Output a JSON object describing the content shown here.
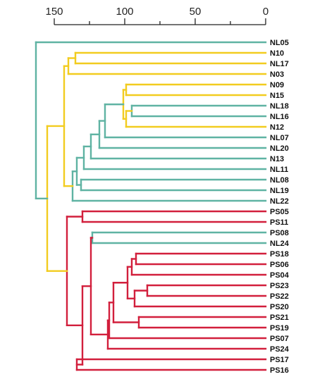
{
  "colors": {
    "teal": "#5fb3a3",
    "yellow": "#f2cc1f",
    "red": "#d21f3c",
    "axis": "#222222"
  },
  "axis": {
    "ticks": [
      {
        "value": 150,
        "label": "150"
      },
      {
        "value": 100,
        "label": "100"
      },
      {
        "value": 50,
        "label": "50"
      },
      {
        "value": 0,
        "label": "0"
      }
    ],
    "minor_ticks": [
      125,
      75,
      25
    ],
    "range": [
      150,
      0
    ]
  },
  "leaves": [
    "NL05",
    "N10",
    "NL17",
    "N03",
    "N09",
    "N15",
    "NL18",
    "NL16",
    "N12",
    "NL07",
    "NL20",
    "N13",
    "NL11",
    "NL08",
    "NL19",
    "NL22",
    "PS05",
    "PS11",
    "PS08",
    "NL24",
    "PS18",
    "PS06",
    "PS04",
    "PS23",
    "PS22",
    "PS20",
    "PS21",
    "PS19",
    "PS07",
    "PS24",
    "PS17",
    "PS16"
  ],
  "tree": {
    "h": 163,
    "c": "teal",
    "children": [
      "NL05",
      {
        "h": 155,
        "c": "yellow",
        "children": [
          {
            "h": 143,
            "c": "yellow",
            "children": [
              {
                "h": 140,
                "c": "yellow",
                "children": [
                  {
                    "h": 135,
                    "c": "yellow",
                    "children": [
                      "N10",
                      "NL17"
                    ]
                  },
                  "N03"
                ]
              },
              {
                "h": 137,
                "c": "teal",
                "children": [
                  {
                    "h": 134,
                    "c": "teal",
                    "children": [
                      {
                        "h": 129,
                        "c": "teal",
                        "children": [
                          {
                            "h": 124,
                            "c": "teal",
                            "children": [
                              {
                                "h": 118,
                                "c": "teal",
                                "children": [
                                  {
                                    "h": 114,
                                    "c": "teal",
                                    "children": [
                                      {
                                        "h": 101,
                                        "c": "yellow",
                                        "children": [
                                          {
                                            "h": 99,
                                            "c": "yellow",
                                            "children": [
                                              "N09",
                                              "N15"
                                            ]
                                          },
                                          {
                                            "h": 99,
                                            "c": "yellow",
                                            "children": [
                                              {
                                                "h": 95,
                                                "c": "teal",
                                                "children": [
                                                  "NL18",
                                                  "NL16"
                                                ]
                                              },
                                              "N12"
                                            ]
                                          }
                                        ]
                                      },
                                      "NL07"
                                    ]
                                  },
                                  "NL20"
                                ]
                              },
                              "N13"
                            ]
                          },
                          "NL11"
                        ]
                      },
                      {
                        "h": 131,
                        "c": "teal",
                        "children": [
                          "NL08",
                          "NL19"
                        ]
                      }
                    ]
                  },
                  "NL22"
                ]
              }
            ]
          },
          {
            "h": 141,
            "c": "red",
            "children": [
              {
                "h": 130,
                "c": "red",
                "children": [
                  "PS05",
                  "PS11"
                ]
              },
              {
                "h": 130,
                "c": "red",
                "children": [
                  {
                    "h": 124,
                    "c": "red",
                    "children": [
                      {
                        "h": 123,
                        "c": "teal",
                        "children": [
                          "PS08",
                          "NL24"
                        ]
                      },
                      {
                        "h": 112,
                        "c": "red",
                        "children": [
                          {
                            "h": 111,
                            "c": "red",
                            "children": [
                              {
                                "h": 108,
                                "c": "red",
                                "children": [
                                  {
                                    "h": 98,
                                    "c": "red",
                                    "children": [
                                      {
                                        "h": 95,
                                        "c": "red",
                                        "children": [
                                          {
                                            "h": 92,
                                            "c": "red",
                                            "children": [
                                              "PS18",
                                              "PS06"
                                            ]
                                          },
                                          "PS04"
                                        ]
                                      },
                                      {
                                        "h": 93,
                                        "c": "red",
                                        "children": [
                                          {
                                            "h": 84,
                                            "c": "red",
                                            "children": [
                                              "PS23",
                                              "PS22"
                                            ]
                                          },
                                          "PS20"
                                        ]
                                      }
                                    ]
                                  },
                                  {
                                    "h": 90,
                                    "c": "red",
                                    "children": [
                                      "PS21",
                                      "PS19"
                                    ]
                                  }
                                ]
                              },
                              "PS07"
                            ]
                          },
                          "PS24"
                        ]
                      }
                    ]
                  },
                  {
                    "h": 134,
                    "c": "red",
                    "children": [
                      "PS17",
                      "PS16"
                    ]
                  }
                ]
              }
            ]
          }
        ]
      }
    ]
  }
}
